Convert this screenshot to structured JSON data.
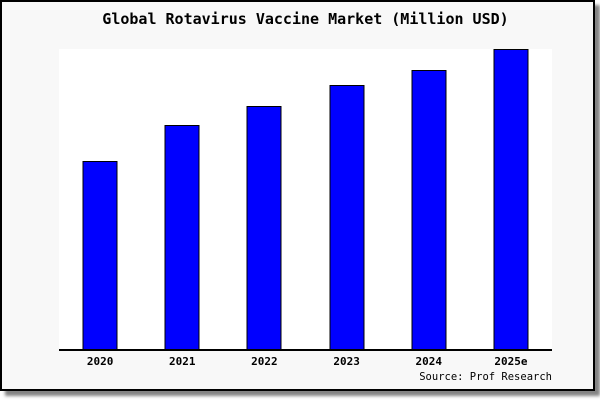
{
  "figure": {
    "title": "Global Rotavirus Vaccine Market (Million USD)",
    "source": "Source: Prof Research",
    "colors": {
      "bar_fill": "#0000FF",
      "bar_edge": "#000000",
      "figure_bg": "#F8F8F8",
      "plot_bg": "#FFFFFF",
      "axis": "#000000",
      "border": "#000000",
      "shadow": "#6E6E6E"
    }
  },
  "chart_data": {
    "type": "bar",
    "title": "Global Rotavirus Vaccine Market (Million USD)",
    "categories": [
      "2020",
      "2021",
      "2022",
      "2023",
      "2024",
      "2025e"
    ],
    "values": [
      63,
      75,
      81,
      88,
      93,
      100
    ],
    "value_note": "No y-axis labels in chart; values are relative bar heights as % of the 2025e bar",
    "xlabel": "",
    "ylabel": "",
    "ylim": [
      0,
      100
    ],
    "grid": false,
    "legend": null,
    "source": "Source: Prof Research"
  }
}
